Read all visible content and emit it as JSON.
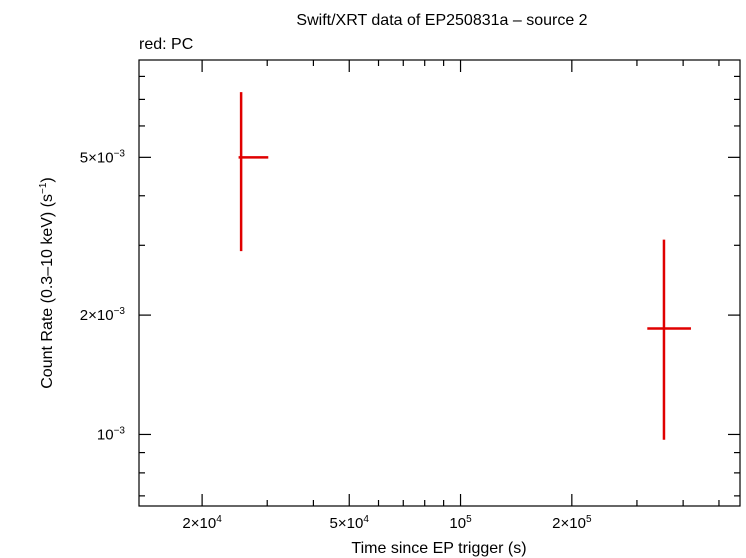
{
  "chart_data": {
    "type": "scatter",
    "title": "Swift/XRT data of EP250831a – source 2",
    "legend_text": "red: PC",
    "xlabel": "Time since EP trigger (s)",
    "ylabel_main": "Count Rate (0.3–10 keV) (s",
    "ylabel_sup": "−1",
    "ylabel_end": ")",
    "x_scale": "log",
    "y_scale": "log",
    "xlim": [
      13500,
      570000
    ],
    "ylim": [
      0.00066,
      0.0088
    ],
    "x_ticks": [
      {
        "value": 20000,
        "mant": "2×10",
        "exp": "4"
      },
      {
        "value": 50000,
        "mant": "5×10",
        "exp": "4"
      },
      {
        "value": 100000,
        "mant": "10",
        "exp": "5"
      },
      {
        "value": 200000,
        "mant": "2×10",
        "exp": "5"
      }
    ],
    "y_ticks": [
      {
        "value": 0.005,
        "mant": "5×10",
        "exp": "−3"
      },
      {
        "value": 0.002,
        "mant": "2×10",
        "exp": "−3"
      },
      {
        "value": 0.001,
        "mant": "10",
        "exp": "−3"
      }
    ],
    "series": [
      {
        "color": "#e00000",
        "points": [
          {
            "x": 25500,
            "xlo": 25100,
            "xhi": 30200,
            "y": 0.005,
            "ylo": 0.0029,
            "yhi": 0.0073
          },
          {
            "x": 355000,
            "xlo": 320000,
            "xhi": 420000,
            "y": 0.00185,
            "ylo": 0.00097,
            "yhi": 0.0031
          }
        ]
      }
    ],
    "grid": false
  }
}
